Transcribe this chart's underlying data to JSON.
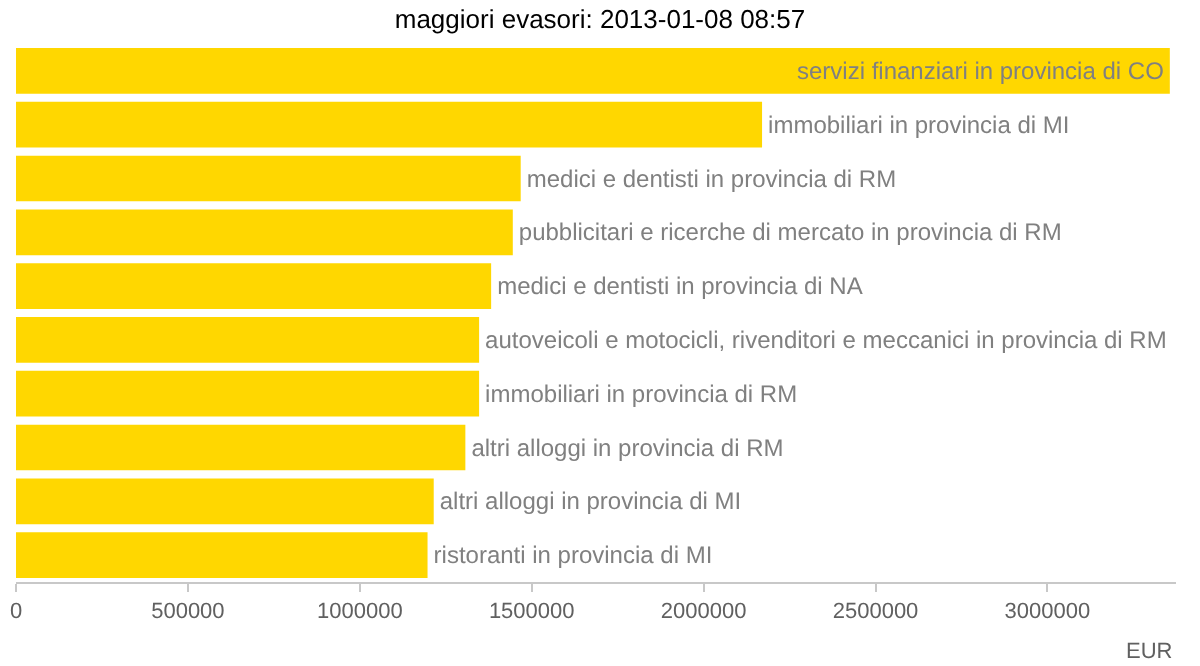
{
  "chart_data": {
    "type": "bar",
    "orientation": "horizontal",
    "title": "maggiori evasori: 2013-01-08 08:57",
    "xlabel": "EUR",
    "categories": [
      "servizi finanziari in provincia di CO",
      "immobiliari in provincia di MI",
      "medici e dentisti in provincia di RM",
      "pubblicitari e ricerche di mercato in provincia di RM",
      "medici e dentisti in provincia di NA",
      "autoveicoli e motocicli, rivenditori e meccanici in provincia di RM",
      "immobiliari in provincia di RM",
      "altri alloggi in provincia di RM",
      "altri alloggi in provincia di MI",
      "ristoranti in provincia di MI"
    ],
    "values": [
      3356000,
      2170000,
      1468000,
      1445000,
      1382000,
      1347000,
      1347000,
      1307000,
      1215000,
      1197000
    ],
    "color": "#ffd700",
    "xlim": [
      0,
      3374000
    ],
    "xticks": [
      0,
      500000,
      1000000,
      1500000,
      2000000,
      2500000,
      3000000
    ],
    "legend": false,
    "tick_labels": "x"
  }
}
